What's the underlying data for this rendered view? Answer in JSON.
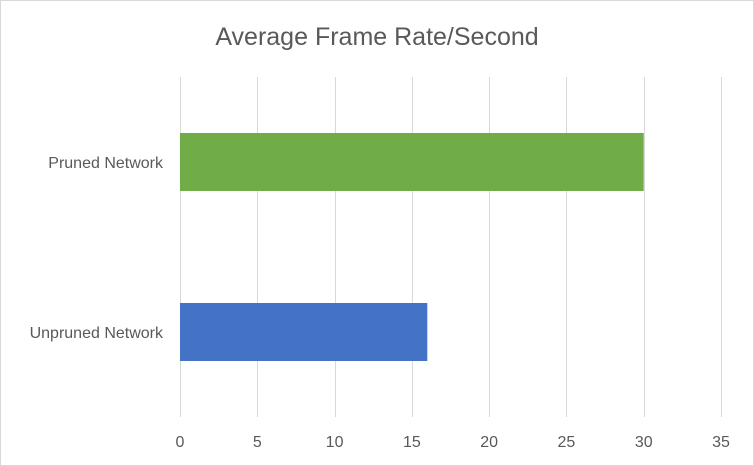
{
  "chart_data": {
    "type": "bar",
    "orientation": "horizontal",
    "title": "Average Frame Rate/Second",
    "categories": [
      "Pruned Network",
      "Unpruned Network"
    ],
    "values": [
      30,
      16
    ],
    "colors": [
      "#70ad47",
      "#4472c4"
    ],
    "xlim": [
      0,
      35
    ],
    "xticks": [
      0,
      5,
      10,
      15,
      20,
      25,
      30,
      35
    ],
    "xlabel": "",
    "ylabel": "",
    "grid": true,
    "legend": "none"
  }
}
